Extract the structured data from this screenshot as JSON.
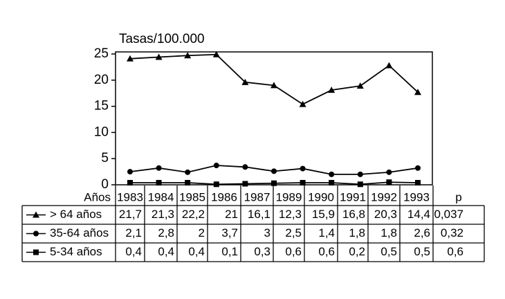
{
  "chart_data": {
    "type": "line",
    "ylabel": "Tasas/100.000",
    "categories": [
      null,
      null,
      null,
      null,
      null,
      null,
      null,
      null,
      null,
      null,
      null
    ],
    "ylim": [
      0,
      25
    ],
    "yticks": [
      0,
      5,
      10,
      15,
      20,
      25
    ],
    "series": [
      {
        "name": "> 64 años",
        "color": "#000000",
        "marker": "triangle",
        "values": [
          24.1,
          24.4,
          24.7,
          24.9,
          19.6,
          19.0,
          15.4,
          18.1,
          18.9,
          22.8,
          17.7
        ]
      },
      {
        "name": "35-64 años",
        "color": "#000000",
        "marker": "circle",
        "values": [
          2.5,
          3.2,
          2.4,
          3.7,
          3.4,
          2.6,
          3.1,
          2.0,
          2.0,
          2.4,
          3.2
        ]
      },
      {
        "name": "5-34 años",
        "color": "#000000",
        "marker": "square",
        "values": [
          0.4,
          0.4,
          0.4,
          0.1,
          0.2,
          0.3,
          0.4,
          0.4,
          0.1,
          0.5,
          0.4
        ]
      }
    ]
  },
  "table": {
    "corner": "Años",
    "columns": [
      "1983",
      "1984",
      "1985",
      "1986",
      "1987",
      "1989",
      "1990",
      "1991",
      "1992",
      "1993",
      "p"
    ],
    "rows": [
      [
        "21,7",
        "21,3",
        "22,2",
        "21",
        "16,1",
        "12,3",
        "15,9",
        "16,8",
        "20,3",
        "14,4",
        "0,037"
      ],
      [
        "2,1",
        "2,8",
        "2",
        "3,7",
        "3",
        "2,5",
        "1,4",
        "1,8",
        "1,8",
        "2,6",
        "0,32"
      ],
      [
        "0,4",
        "0,4",
        "0,4",
        "0,1",
        "0,3",
        "0,6",
        "0,6",
        "0,2",
        "0,5",
        "0,5",
        "0,6"
      ]
    ]
  }
}
